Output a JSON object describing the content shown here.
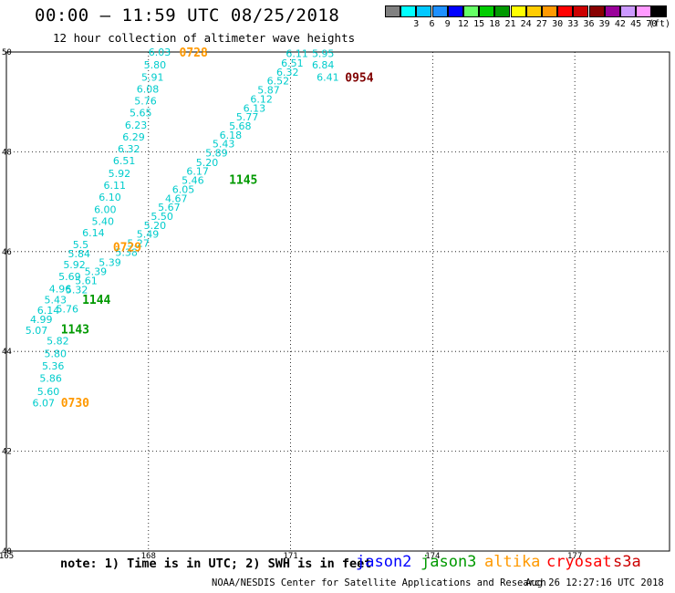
{
  "header": {
    "title": "00:00 – 11:59 UTC 08/25/2018",
    "subtitle": "12 hour collection of altimeter wave heights"
  },
  "legend": {
    "units": "(ft)",
    "items": [
      {
        "label": "",
        "color": "#808080"
      },
      {
        "label": "3",
        "color": "#00ffff"
      },
      {
        "label": "6",
        "color": "#00c8ff"
      },
      {
        "label": "9",
        "color": "#1e90ff"
      },
      {
        "label": "12",
        "color": "#0000ff"
      },
      {
        "label": "15",
        "color": "#66ff66"
      },
      {
        "label": "18",
        "color": "#00cc00"
      },
      {
        "label": "21",
        "color": "#009900"
      },
      {
        "label": "24",
        "color": "#ffff00"
      },
      {
        "label": "27",
        "color": "#ffcc00"
      },
      {
        "label": "30",
        "color": "#ff9900"
      },
      {
        "label": "33",
        "color": "#ff0000"
      },
      {
        "label": "36",
        "color": "#cc0000"
      },
      {
        "label": "39",
        "color": "#880000"
      },
      {
        "label": "42",
        "color": "#990099"
      },
      {
        "label": "45",
        "color": "#cc99ff"
      },
      {
        "label": "70",
        "color": "#ff99ff"
      },
      {
        "label": "",
        "color": "#000000"
      }
    ]
  },
  "footer": {
    "note": "note: 1) Time is in UTC; 2) SWH is in feet",
    "satellites": [
      {
        "name": "jason2",
        "color": "#0000ff"
      },
      {
        "name": "jason3",
        "color": "#009900"
      },
      {
        "name": "altika",
        "color": "#ff9900"
      },
      {
        "name": "cryosat",
        "color": "#ff0000"
      },
      {
        "name": "s3a",
        "color": "#cc0000"
      }
    ],
    "credit": "NOAA/NESDIS Center for Satellite Applications and Research",
    "timestamp": "Aug 26 12:27:16 UTC 2018"
  },
  "chart_data": {
    "type": "scatter",
    "title": "12 hour collection of altimeter wave heights",
    "xlim": [
      165,
      179
    ],
    "ylim": [
      40,
      50
    ],
    "x_ticks": [
      165,
      168,
      171,
      174,
      177
    ],
    "x_tick_labels": [
      "165",
      "168",
      "171",
      "174",
      "177"
    ],
    "y_ticks": [
      40,
      42,
      44,
      46,
      48,
      50
    ],
    "y_tick_labels": [
      "40",
      "42",
      "44",
      "46",
      "48",
      "50"
    ],
    "grid": true,
    "value_color": "#00cccc",
    "series": [
      {
        "name": "altika",
        "points": [
          {
            "x": 168.0,
            "y": 50.0,
            "v": "6.03"
          },
          {
            "x": 167.9,
            "y": 49.74,
            "v": "5.80"
          },
          {
            "x": 167.85,
            "y": 49.5,
            "v": "5.91"
          },
          {
            "x": 167.75,
            "y": 49.26,
            "v": "6.08"
          },
          {
            "x": 167.7,
            "y": 49.02,
            "v": "5.76"
          },
          {
            "x": 167.6,
            "y": 48.78,
            "v": "5.65"
          },
          {
            "x": 167.5,
            "y": 48.54,
            "v": "6.23"
          },
          {
            "x": 167.45,
            "y": 48.3,
            "v": "6.29"
          },
          {
            "x": 167.35,
            "y": 48.06,
            "v": "6.32"
          },
          {
            "x": 167.25,
            "y": 47.82,
            "v": "6.51"
          },
          {
            "x": 167.15,
            "y": 47.57,
            "v": "5.92"
          },
          {
            "x": 167.05,
            "y": 47.33,
            "v": "6.11"
          },
          {
            "x": 166.95,
            "y": 47.09,
            "v": "6.10"
          },
          {
            "x": 166.85,
            "y": 46.85,
            "v": "6.00"
          },
          {
            "x": 166.8,
            "y": 46.61,
            "v": "5.40"
          },
          {
            "x": 166.6,
            "y": 46.38,
            "v": "6.14"
          },
          {
            "x": 166.4,
            "y": 46.14,
            "v": "5.5"
          },
          {
            "x": 166.3,
            "y": 45.96,
            "v": "5.84"
          },
          {
            "x": 166.2,
            "y": 45.74,
            "v": "5.92"
          },
          {
            "x": 166.1,
            "y": 45.5,
            "v": "5.69"
          },
          {
            "x": 165.9,
            "y": 45.26,
            "v": "4.96"
          },
          {
            "x": 165.8,
            "y": 45.04,
            "v": "5.43"
          },
          {
            "x": 165.65,
            "y": 44.83,
            "v": "6.14"
          },
          {
            "x": 165.5,
            "y": 44.64,
            "v": "4.99"
          },
          {
            "x": 165.4,
            "y": 44.42,
            "v": "5.07"
          },
          {
            "x": 165.85,
            "y": 44.21,
            "v": "5.82"
          },
          {
            "x": 165.8,
            "y": 43.96,
            "v": "5.80"
          },
          {
            "x": 165.75,
            "y": 43.71,
            "v": "5.36"
          },
          {
            "x": 165.7,
            "y": 43.46,
            "v": "5.86"
          },
          {
            "x": 165.65,
            "y": 43.2,
            "v": "5.60"
          },
          {
            "x": 165.55,
            "y": 42.97,
            "v": "6.07"
          }
        ]
      },
      {
        "name": "jason3",
        "points": [
          {
            "x": 170.9,
            "y": 49.97,
            "v": "6.11"
          },
          {
            "x": 171.45,
            "y": 49.97,
            "v": "5.95"
          },
          {
            "x": 170.8,
            "y": 49.78,
            "v": "6.51"
          },
          {
            "x": 171.45,
            "y": 49.74,
            "v": "6.84"
          },
          {
            "x": 170.7,
            "y": 49.6,
            "v": "6.32"
          },
          {
            "x": 171.55,
            "y": 49.5,
            "v": "6.41"
          },
          {
            "x": 170.5,
            "y": 49.42,
            "v": "6.52"
          },
          {
            "x": 170.3,
            "y": 49.24,
            "v": "5.87"
          },
          {
            "x": 170.15,
            "y": 49.06,
            "v": "6.12"
          },
          {
            "x": 170.0,
            "y": 48.88,
            "v": "6.13"
          },
          {
            "x": 169.85,
            "y": 48.7,
            "v": "5.77"
          },
          {
            "x": 169.7,
            "y": 48.52,
            "v": "5.68"
          },
          {
            "x": 169.5,
            "y": 48.34,
            "v": "6.18"
          },
          {
            "x": 169.35,
            "y": 48.16,
            "v": "5.43"
          },
          {
            "x": 169.2,
            "y": 47.98,
            "v": "5.89"
          },
          {
            "x": 169.0,
            "y": 47.79,
            "v": "5.20"
          },
          {
            "x": 168.8,
            "y": 47.61,
            "v": "6.17"
          },
          {
            "x": 168.7,
            "y": 47.43,
            "v": "5.46"
          },
          {
            "x": 168.5,
            "y": 47.25,
            "v": "6.05"
          },
          {
            "x": 168.35,
            "y": 47.07,
            "v": "4.67"
          },
          {
            "x": 168.2,
            "y": 46.89,
            "v": "5.67"
          },
          {
            "x": 168.05,
            "y": 46.71,
            "v": "5.50"
          },
          {
            "x": 167.9,
            "y": 46.53,
            "v": "5.20"
          },
          {
            "x": 167.75,
            "y": 46.35,
            "v": "5.49"
          },
          {
            "x": 167.55,
            "y": 46.17,
            "v": "5.27"
          },
          {
            "x": 167.3,
            "y": 45.99,
            "v": "5.38"
          },
          {
            "x": 166.95,
            "y": 45.79,
            "v": "5.39"
          },
          {
            "x": 166.65,
            "y": 45.6,
            "v": "5.39"
          },
          {
            "x": 166.45,
            "y": 45.42,
            "v": "5.61"
          },
          {
            "x": 166.25,
            "y": 45.24,
            "v": "5.32"
          },
          {
            "x": 166.05,
            "y": 44.85,
            "v": "5.76"
          }
        ]
      }
    ],
    "time_labels": [
      {
        "x": 168.65,
        "y": 50.0,
        "text": "0728",
        "sat": "altika",
        "color": "#ff9900"
      },
      {
        "x": 172.15,
        "y": 49.5,
        "text": "0954",
        "sat": "s3a",
        "color": "#800000"
      },
      {
        "x": 169.7,
        "y": 47.45,
        "text": "1145",
        "sat": "jason3",
        "color": "#009900"
      },
      {
        "x": 167.25,
        "y": 46.1,
        "text": "0729",
        "sat": "altika",
        "color": "#ff9900"
      },
      {
        "x": 166.6,
        "y": 45.05,
        "text": "1144",
        "sat": "jason3",
        "color": "#009900"
      },
      {
        "x": 166.15,
        "y": 44.45,
        "text": "1143",
        "sat": "jason3",
        "color": "#009900"
      },
      {
        "x": 166.15,
        "y": 42.98,
        "text": "0730",
        "sat": "altika",
        "color": "#ff9900"
      }
    ]
  }
}
